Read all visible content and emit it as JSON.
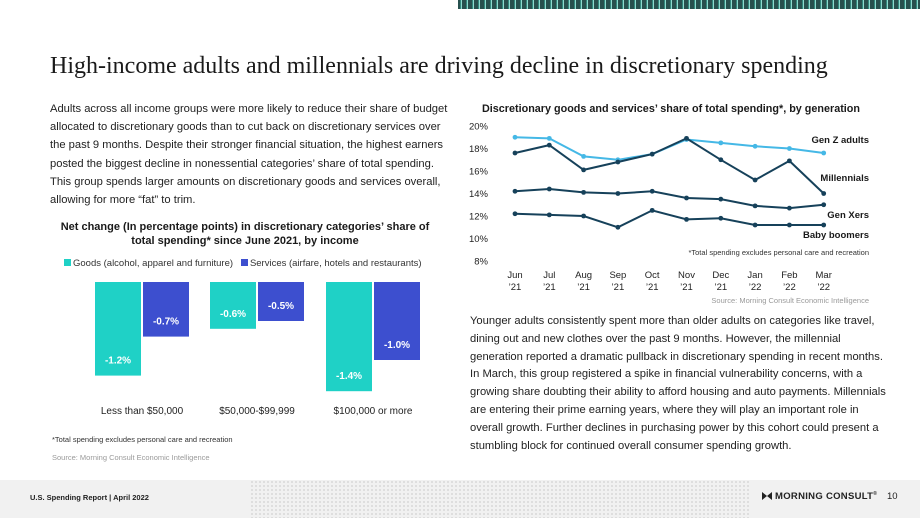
{
  "title": "High-income adults and millennials are driving decline in discretionary spending",
  "intro": "Adults across all income groups were more likely to reduce their share of budget allocated to discretionary goods than to cut back on discretionary services over the past 9 months. Despite their stronger financial situation, the highest earners posted the biggest decline in nonessential categories’ share of total spending. This group spends larger amounts on discretionary goods and services overall, allowing for more “fat” to trim.",
  "body2": "Younger adults consistently spent more than older adults on categories like travel, dining out and new clothes over the past 9 months. However, the millennial generation reported a dramatic pullback in discretionary spending in recent months. In March, this group registered a spike in financial vulnerability concerns, with a growing share doubting their ability to afford housing and auto payments. Millennials are entering their prime earning years, where they will play an important role in overall growth. Further declines in purchasing power by this cohort could present a stumbling block for continued overall consumer spending growth.",
  "colors": {
    "goods": "#1fd1c6",
    "services": "#3d4fcf",
    "genz": "#45b8e6",
    "other": "#16415a"
  },
  "chart_data": [
    {
      "type": "bar",
      "title": "Net change (In percentage points) in discretionary categories’ share of total spending* since June 2021, by income",
      "categories": [
        "Less than $50,000",
        "$50,000-$99,999",
        "$100,000 or more"
      ],
      "series": [
        {
          "name": "Goods (alcohol, apparel and furniture)",
          "values": [
            -1.2,
            -0.6,
            -1.4
          ]
        },
        {
          "name": "Services (airfare, hotels and restaurants)",
          "values": [
            -0.7,
            -0.5,
            -1.0
          ]
        }
      ],
      "labels": [
        [
          "-1.2%",
          "-0.6%",
          "-1.4%"
        ],
        [
          "-0.7%",
          "-0.5%",
          "-1.0%"
        ]
      ],
      "footnote": "*Total spending excludes personal care and recreation",
      "source": "Source: Morning Consult Economic Intelligence"
    },
    {
      "type": "line",
      "title": "Discretionary goods and services’ share of total spending*, by generation",
      "x_top": [
        "Jun",
        "Jul",
        "Aug",
        "Sep",
        "Oct",
        "Nov",
        "Dec",
        "Jan",
        "Feb",
        "Mar"
      ],
      "x_bottom": [
        "’21",
        "’21",
        "’21",
        "’21",
        "’21",
        "’21",
        "’21",
        "’22",
        "’22",
        "’22"
      ],
      "y_ticks": [
        "20%",
        "18%",
        "16%",
        "14%",
        "12%",
        "10%",
        "8%"
      ],
      "ylim": [
        8,
        20
      ],
      "series": [
        {
          "name": "Gen Z adults",
          "values": [
            19.0,
            18.9,
            17.3,
            17.0,
            17.5,
            18.8,
            18.5,
            18.2,
            18.0,
            17.6
          ]
        },
        {
          "name": "Millennials",
          "values": [
            17.6,
            18.3,
            16.1,
            16.8,
            17.5,
            18.9,
            17.0,
            15.2,
            16.9,
            14.0
          ]
        },
        {
          "name": "Gen Xers",
          "values": [
            14.2,
            14.4,
            14.1,
            14.0,
            14.2,
            13.6,
            13.5,
            12.9,
            12.7,
            13.0
          ]
        },
        {
          "name": "Baby boomers",
          "values": [
            12.2,
            12.1,
            12.0,
            11.0,
            12.5,
            11.7,
            11.8,
            11.2,
            11.2,
            11.2
          ]
        }
      ],
      "footnote": "*Total spending excludes personal care and recreation",
      "source": "Source: Morning Consult Economic Intelligence"
    }
  ],
  "footer": {
    "left": "U.S. Spending Report | April 2022",
    "brand": "MORNING CONSULT",
    "brand_mark": "®",
    "page": "10"
  }
}
